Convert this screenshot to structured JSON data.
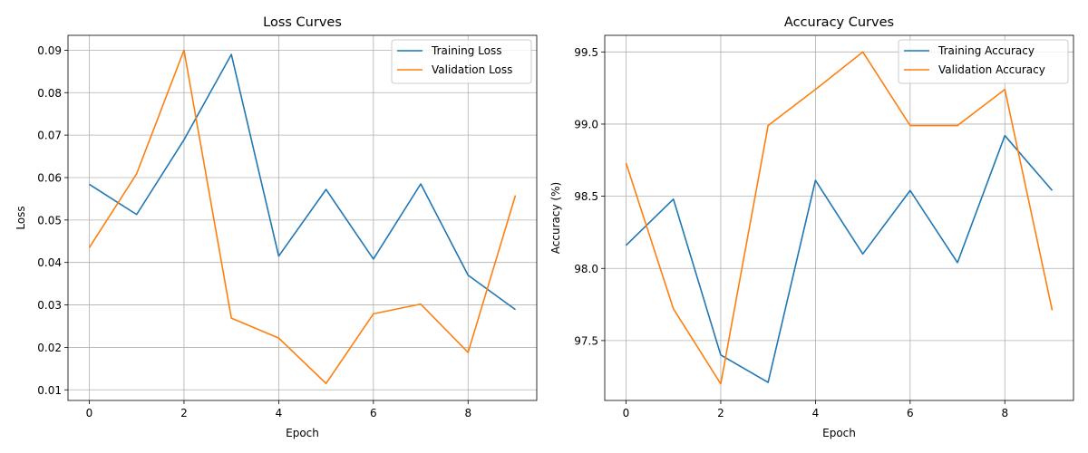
{
  "chart_data": [
    {
      "type": "line",
      "title": "Loss Curves",
      "xlabel": "Epoch",
      "ylabel": "Loss",
      "x": [
        0,
        1,
        2,
        3,
        4,
        5,
        6,
        7,
        8,
        9
      ],
      "xlim": [
        -0.45,
        9.45
      ],
      "ylim": [
        0.0075,
        0.0935
      ],
      "xticks": [
        0,
        2,
        4,
        6,
        8
      ],
      "yticks": [
        0.01,
        0.02,
        0.03,
        0.04,
        0.05,
        0.06,
        0.07,
        0.08,
        0.09
      ],
      "ytick_labels": [
        "0.01",
        "0.02",
        "0.03",
        "0.04",
        "0.05",
        "0.06",
        "0.07",
        "0.08",
        "0.09"
      ],
      "grid": true,
      "legend_position": "top-right",
      "series": [
        {
          "name": "Training Loss",
          "color": "#1f77b4",
          "values": [
            0.0584,
            0.0513,
            0.0689,
            0.089,
            0.0415,
            0.0572,
            0.0408,
            0.0585,
            0.037,
            0.0289
          ]
        },
        {
          "name": "Validation Loss",
          "color": "#ff7f0e",
          "values": [
            0.0435,
            0.0609,
            0.09,
            0.0269,
            0.0222,
            0.0115,
            0.0279,
            0.0302,
            0.0188,
            0.0558
          ]
        }
      ]
    },
    {
      "type": "line",
      "title": "Accuracy Curves",
      "xlabel": "Epoch",
      "ylabel": "Accuracy (%)",
      "x": [
        0,
        1,
        2,
        3,
        4,
        5,
        6,
        7,
        8,
        9
      ],
      "xlim": [
        -0.45,
        9.45
      ],
      "ylim": [
        97.085,
        99.615
      ],
      "xticks": [
        0,
        2,
        4,
        6,
        8
      ],
      "yticks": [
        97.5,
        98.0,
        98.5,
        99.0,
        99.5
      ],
      "ytick_labels": [
        "97.5",
        "98.0",
        "98.5",
        "99.0",
        "99.5"
      ],
      "grid": true,
      "legend_position": "top-right",
      "series": [
        {
          "name": "Training Accuracy",
          "color": "#1f77b4",
          "values": [
            98.16,
            98.48,
            97.4,
            97.21,
            98.61,
            98.1,
            98.54,
            98.04,
            98.92,
            98.54
          ]
        },
        {
          "name": "Validation Accuracy",
          "color": "#ff7f0e",
          "values": [
            98.73,
            97.72,
            97.2,
            98.99,
            99.24,
            99.5,
            98.99,
            98.99,
            99.24,
            97.71
          ]
        }
      ]
    }
  ]
}
